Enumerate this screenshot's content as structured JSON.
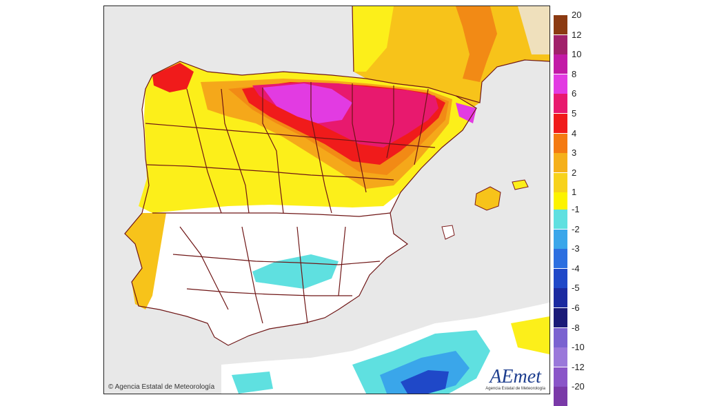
{
  "copyright": "© Agencia Estatal de Meteorología",
  "logo": {
    "main": "AEmet",
    "sub": "Agencia Estatal de Meteorología"
  },
  "legend": {
    "positive": [
      {
        "label": "20",
        "color": "#8b3a12"
      },
      {
        "label": "12",
        "color": "#a0216a"
      },
      {
        "label": "10",
        "color": "#c21aa6"
      },
      {
        "label": "8",
        "color": "#e23be2"
      },
      {
        "label": "6",
        "color": "#e8196e"
      },
      {
        "label": "5",
        "color": "#f01b1b"
      },
      {
        "label": "4",
        "color": "#f47a12"
      },
      {
        "label": "3",
        "color": "#f5b01a"
      },
      {
        "label": "2",
        "color": "#f7d21c"
      },
      {
        "label": "1",
        "color": "#fcf300"
      }
    ],
    "negative": [
      {
        "label": "-1",
        "color": "#5fe0e0"
      },
      {
        "label": "-2",
        "color": "#3aa6ea"
      },
      {
        "label": "-3",
        "color": "#2c6fe0"
      },
      {
        "label": "-4",
        "color": "#1f48c8"
      },
      {
        "label": "-5",
        "color": "#1b2aa0"
      },
      {
        "label": "-6",
        "color": "#1a1a78"
      },
      {
        "label": "-8",
        "color": "#7a62d0"
      },
      {
        "label": "-10",
        "color": "#9a78da"
      },
      {
        "label": "-12",
        "color": "#8a55c8"
      },
      {
        "label": "-20",
        "color": "#7a3aa8"
      }
    ]
  }
}
